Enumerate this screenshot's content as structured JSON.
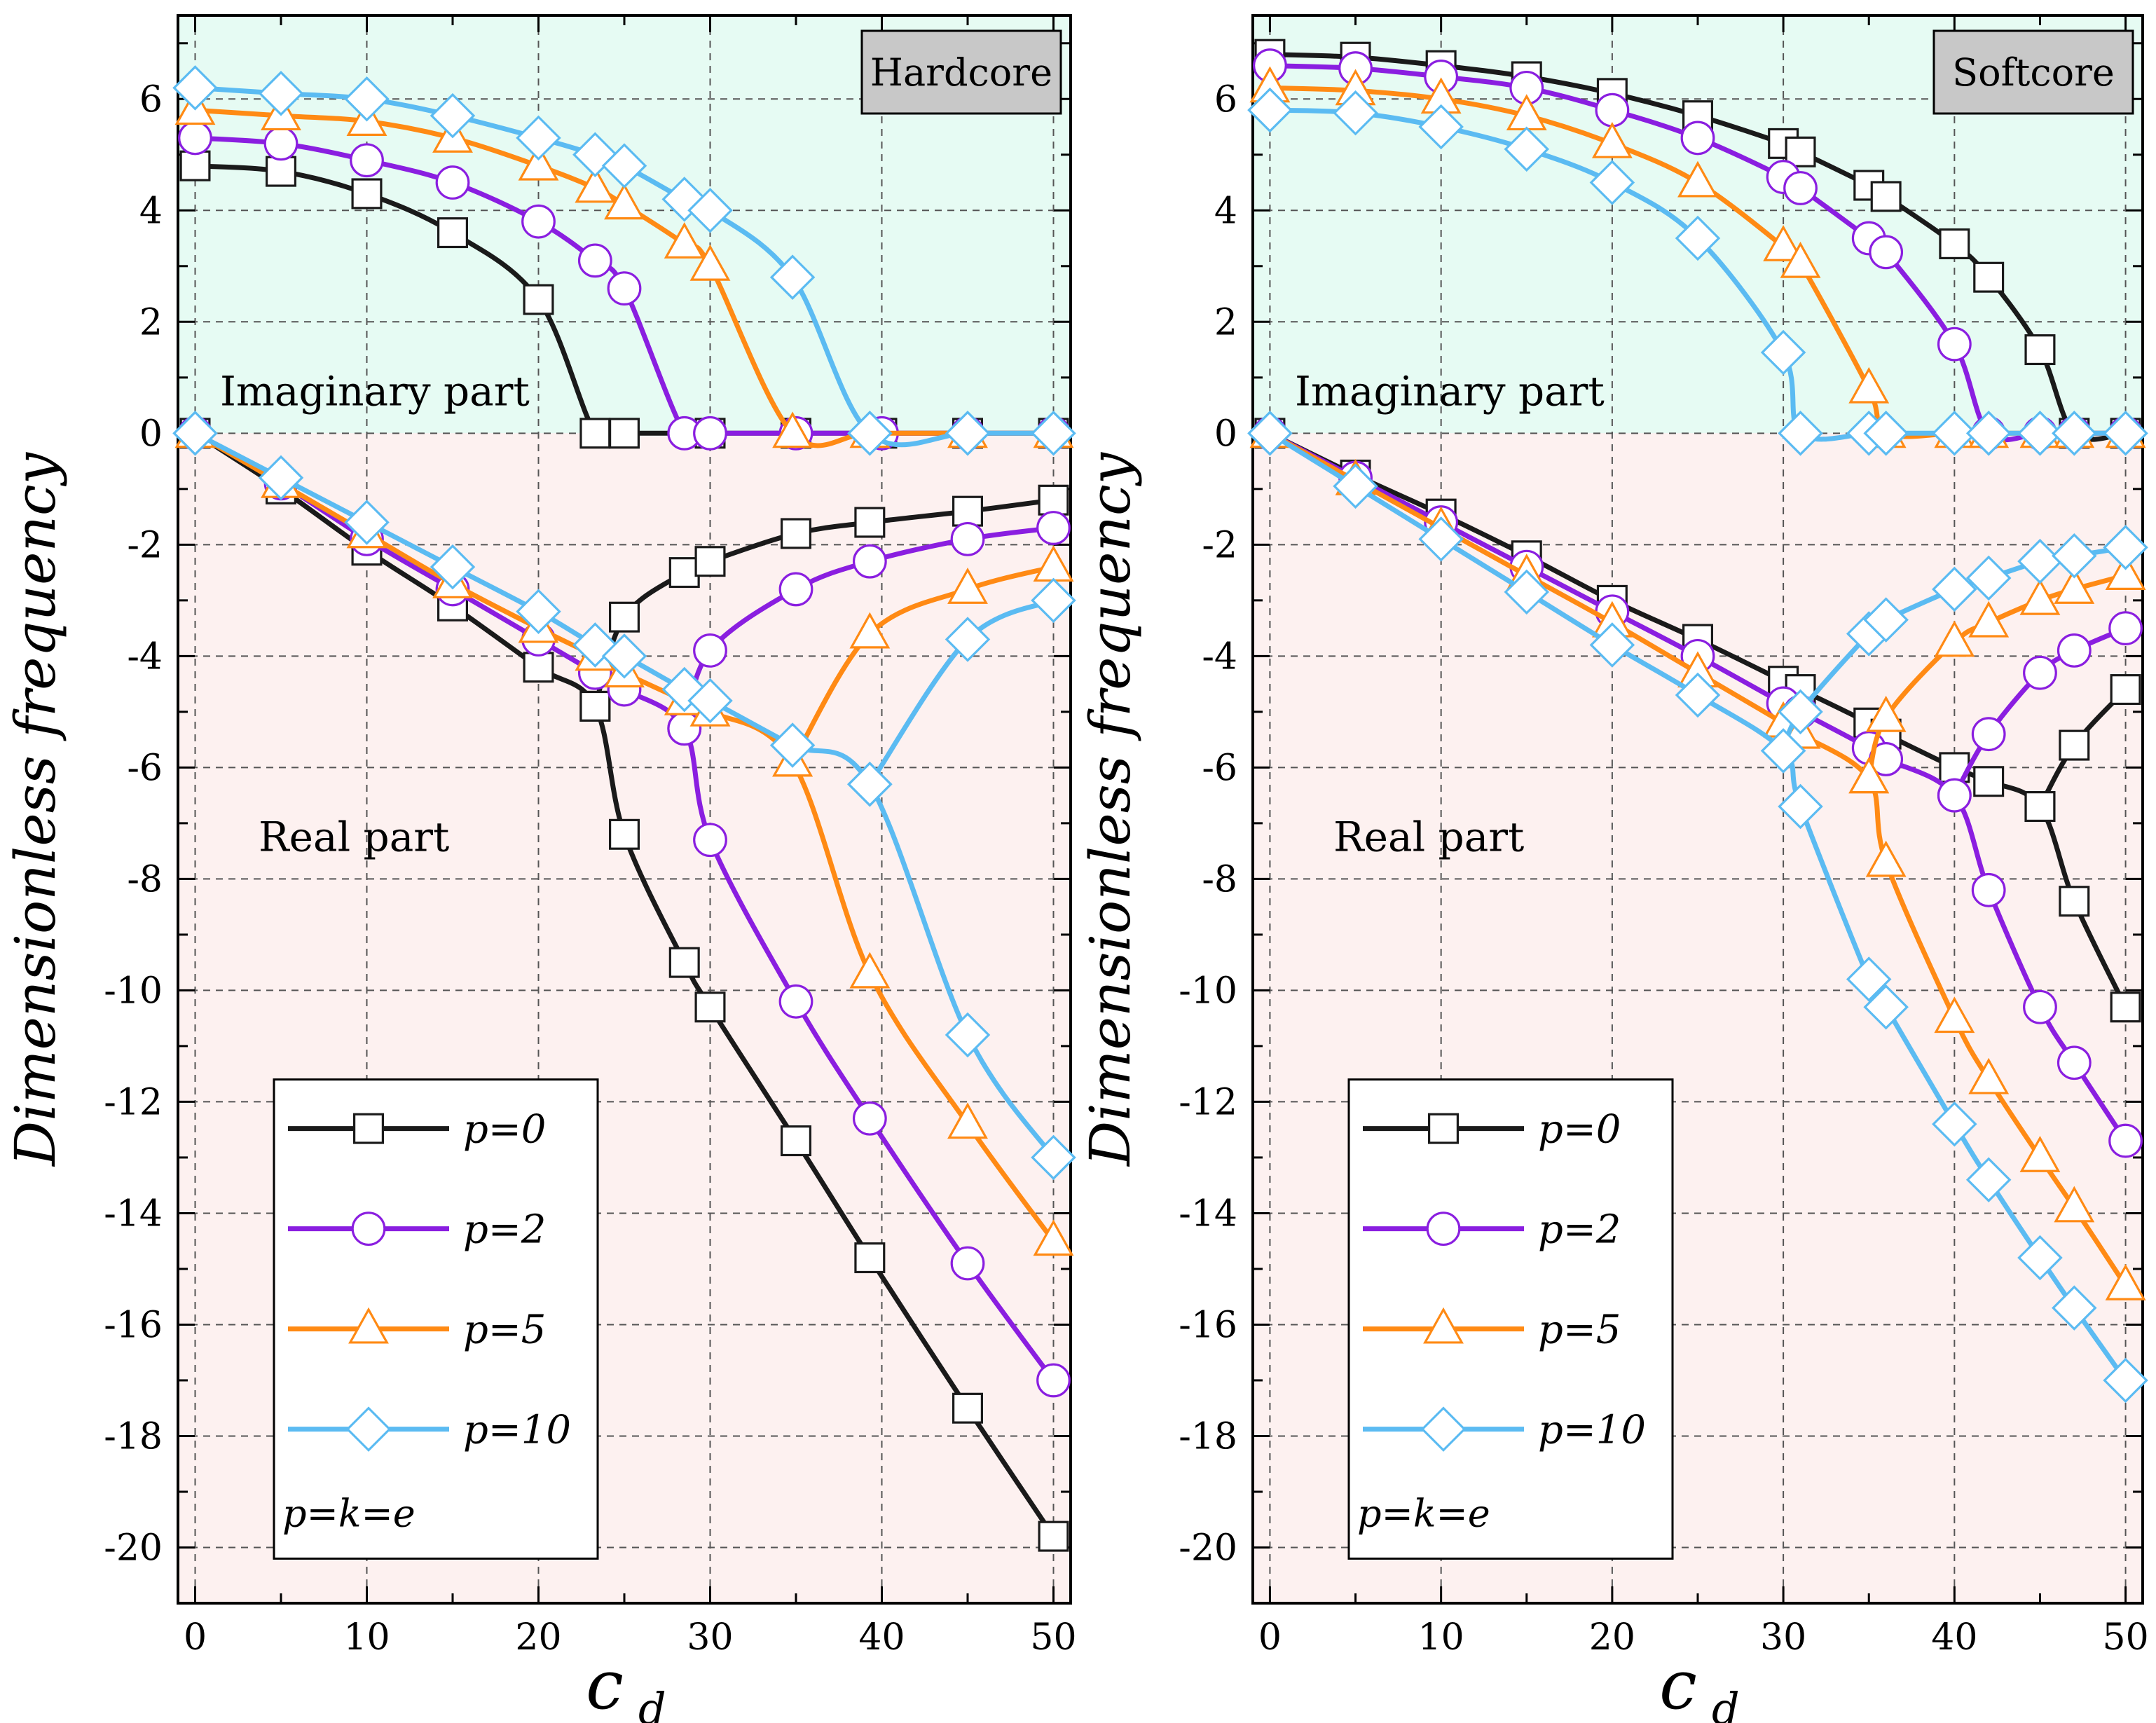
{
  "figure": {
    "ylabel": "Dimensionless frequency",
    "xlabel_main": "c",
    "xlabel_sub": "d",
    "imag_region_label": "Imaginary part",
    "real_region_label": "Real part",
    "legend_note": "p=k=e",
    "colors": {
      "imag_bg": "#e6fbf3",
      "real_bg": "#fdf1f0",
      "tag_bg": "#c8c8c8",
      "grid": "#555555"
    }
  },
  "chart_data": [
    {
      "type": "line",
      "panel_tag": "Hardcore",
      "xlim": [
        -1,
        51
      ],
      "ylim": [
        -21,
        7.5
      ],
      "xticks": [
        0,
        10,
        20,
        30,
        40,
        50
      ],
      "yticks": [
        6,
        4,
        2,
        0,
        -2,
        -4,
        -6,
        -8,
        -10,
        -12,
        -14,
        -16,
        -18,
        -20
      ],
      "grid": true,
      "legend_position": "bottom-left",
      "series": [
        {
          "name": "p=0",
          "color": "#1a1a1a",
          "marker": "square",
          "imag": {
            "x": [
              0,
              5,
              10,
              15,
              20,
              23.3,
              25,
              30,
              35,
              40,
              45,
              50
            ],
            "y": [
              4.8,
              4.7,
              4.3,
              3.6,
              2.4,
              0,
              0,
              0,
              0,
              0,
              0,
              0
            ]
          },
          "real_lower": {
            "x": [
              0,
              5,
              10,
              15,
              20,
              23.3,
              25,
              28.5,
              30,
              35,
              39.3,
              45,
              50
            ],
            "y": [
              0,
              -1.0,
              -2.1,
              -3.1,
              -4.2,
              -4.9,
              -7.2,
              -9.5,
              -10.3,
              -12.7,
              -14.8,
              -17.5,
              -19.8
            ]
          },
          "real_upper": {
            "x": [
              23.3,
              25,
              28.5,
              30,
              35,
              39.3,
              45,
              50
            ],
            "y": [
              -4.9,
              -3.3,
              -2.5,
              -2.3,
              -1.8,
              -1.6,
              -1.4,
              -1.2
            ]
          }
        },
        {
          "name": "p=2",
          "color": "#8a1ee0",
          "marker": "circle",
          "imag": {
            "x": [
              0,
              5,
              10,
              15,
              20,
              23.3,
              25,
              28.5,
              30,
              35,
              40,
              45,
              50
            ],
            "y": [
              5.3,
              5.2,
              4.9,
              4.5,
              3.8,
              3.1,
              2.6,
              0,
              0,
              0,
              0,
              0,
              0
            ]
          },
          "real_lower": {
            "x": [
              0,
              5,
              10,
              15,
              20,
              23.3,
              25,
              28.5,
              30,
              35,
              39.3,
              45,
              50
            ],
            "y": [
              0,
              -0.9,
              -1.9,
              -2.8,
              -3.7,
              -4.3,
              -4.6,
              -5.3,
              -7.3,
              -10.2,
              -12.3,
              -14.9,
              -17.0
            ]
          },
          "real_upper": {
            "x": [
              28.5,
              30,
              35,
              39.3,
              45,
              50
            ],
            "y": [
              -5.3,
              -3.9,
              -2.8,
              -2.3,
              -1.9,
              -1.7
            ]
          }
        },
        {
          "name": "p=5",
          "color": "#ff8a14",
          "marker": "triangle",
          "imag": {
            "x": [
              0,
              5,
              10,
              15,
              20,
              23.3,
              25,
              28.5,
              30,
              34.8,
              39.3,
              45,
              50
            ],
            "y": [
              5.8,
              5.7,
              5.6,
              5.3,
              4.8,
              4.4,
              4.1,
              3.4,
              3.0,
              0,
              0,
              0,
              0
            ]
          },
          "real_lower": {
            "x": [
              0,
              5,
              10,
              15,
              20,
              23.3,
              25,
              28.5,
              30,
              34.8,
              39.3,
              45,
              50
            ],
            "y": [
              0,
              -0.9,
              -1.8,
              -2.7,
              -3.5,
              -4.0,
              -4.3,
              -4.8,
              -5.0,
              -5.9,
              -9.7,
              -12.4,
              -14.5
            ]
          },
          "real_upper": {
            "x": [
              34.8,
              39.3,
              45,
              50
            ],
            "y": [
              -5.9,
              -3.6,
              -2.8,
              -2.4
            ]
          }
        },
        {
          "name": "p=10",
          "color": "#5bbbf2",
          "marker": "diamond",
          "imag": {
            "x": [
              0,
              5,
              10,
              15,
              20,
              23.3,
              25,
              28.5,
              30,
              34.8,
              39.3,
              45,
              50
            ],
            "y": [
              6.2,
              6.1,
              6.0,
              5.7,
              5.3,
              5.0,
              4.8,
              4.2,
              4.0,
              2.8,
              0,
              0,
              0
            ]
          },
          "real_lower": {
            "x": [
              0,
              5,
              10,
              15,
              20,
              23.3,
              25,
              28.5,
              30,
              34.8,
              39.3,
              45,
              50
            ],
            "y": [
              0,
              -0.8,
              -1.6,
              -2.4,
              -3.2,
              -3.8,
              -4.0,
              -4.6,
              -4.8,
              -5.6,
              -6.3,
              -10.8,
              -13.0
            ]
          },
          "real_upper": {
            "x": [
              39.3,
              45,
              50
            ],
            "y": [
              -6.3,
              -3.7,
              -3.0
            ]
          }
        }
      ]
    },
    {
      "type": "line",
      "panel_tag": "Softcore",
      "xlim": [
        -1,
        51
      ],
      "ylim": [
        -21,
        7.5
      ],
      "xticks": [
        0,
        10,
        20,
        30,
        40,
        50
      ],
      "yticks": [
        6,
        4,
        2,
        0,
        -2,
        -4,
        -6,
        -8,
        -10,
        -12,
        -14,
        -16,
        -18,
        -20
      ],
      "grid": true,
      "legend_position": "bottom-left",
      "series": [
        {
          "name": "p=0",
          "color": "#1a1a1a",
          "marker": "square",
          "imag": {
            "x": [
              0,
              5,
              10,
              15,
              20,
              25,
              30,
              31,
              35,
              36,
              40,
              42,
              45,
              47,
              50
            ],
            "y": [
              6.8,
              6.75,
              6.6,
              6.4,
              6.1,
              5.7,
              5.2,
              5.05,
              4.45,
              4.25,
              3.4,
              2.8,
              1.5,
              0,
              0
            ]
          },
          "real_lower": {
            "x": [
              0,
              5,
              10,
              15,
              20,
              25,
              30,
              31,
              35,
              36,
              40,
              42,
              45,
              47,
              50
            ],
            "y": [
              0,
              -0.75,
              -1.45,
              -2.2,
              -3.0,
              -3.7,
              -4.45,
              -4.6,
              -5.2,
              -5.4,
              -6.0,
              -6.25,
              -6.7,
              -8.4,
              -10.3
            ]
          },
          "real_upper": {
            "x": [
              45,
              47,
              50
            ],
            "y": [
              -6.7,
              -5.6,
              -4.6
            ]
          }
        },
        {
          "name": "p=2",
          "color": "#8a1ee0",
          "marker": "circle",
          "imag": {
            "x": [
              0,
              5,
              10,
              15,
              20,
              25,
              30,
              31,
              35,
              36,
              40,
              42,
              45,
              47,
              50
            ],
            "y": [
              6.6,
              6.55,
              6.4,
              6.2,
              5.8,
              5.3,
              4.6,
              4.4,
              3.5,
              3.25,
              1.6,
              0,
              0,
              0,
              0
            ]
          },
          "real_lower": {
            "x": [
              0,
              5,
              10,
              15,
              20,
              25,
              30,
              31,
              35,
              36,
              40,
              42,
              45,
              47,
              50
            ],
            "y": [
              0,
              -0.8,
              -1.6,
              -2.4,
              -3.2,
              -4.0,
              -4.85,
              -5.0,
              -5.65,
              -5.85,
              -6.5,
              -8.2,
              -10.3,
              -11.3,
              -12.7
            ]
          },
          "real_upper": {
            "x": [
              40,
              42,
              45,
              47,
              50
            ],
            "y": [
              -6.5,
              -5.4,
              -4.3,
              -3.9,
              -3.5
            ]
          }
        },
        {
          "name": "p=5",
          "color": "#ff8a14",
          "marker": "triangle",
          "imag": {
            "x": [
              0,
              5,
              10,
              15,
              20,
              25,
              30,
              31,
              35,
              36,
              40,
              42,
              45,
              47,
              50
            ],
            "y": [
              6.2,
              6.15,
              6.0,
              5.7,
              5.2,
              4.5,
              3.35,
              3.05,
              0.8,
              0,
              0,
              0,
              0,
              0,
              0
            ]
          },
          "real_lower": {
            "x": [
              0,
              5,
              10,
              15,
              20,
              25,
              30,
              31,
              35,
              36,
              40,
              42,
              45,
              47,
              50
            ],
            "y": [
              0,
              -0.85,
              -1.7,
              -2.55,
              -3.4,
              -4.3,
              -5.2,
              -5.4,
              -6.2,
              -7.7,
              -10.5,
              -11.6,
              -13.0,
              -13.9,
              -15.3
            ]
          },
          "real_upper": {
            "x": [
              35,
              36,
              40,
              42,
              45,
              47,
              50
            ],
            "y": [
              -6.2,
              -5.1,
              -3.75,
              -3.4,
              -3.0,
              -2.8,
              -2.55
            ]
          }
        },
        {
          "name": "p=10",
          "color": "#5bbbf2",
          "marker": "diamond",
          "imag": {
            "x": [
              0,
              5,
              10,
              15,
              20,
              25,
              30,
              31,
              35,
              36,
              40,
              42,
              45,
              47,
              50
            ],
            "y": [
              5.8,
              5.75,
              5.5,
              5.1,
              4.5,
              3.5,
              1.45,
              0,
              0,
              0,
              0,
              0,
              0,
              0,
              0
            ]
          },
          "real_lower": {
            "x": [
              0,
              5,
              10,
              15,
              20,
              25,
              30,
              31,
              35,
              36,
              40,
              42,
              45,
              47,
              50
            ],
            "y": [
              0,
              -0.95,
              -1.9,
              -2.85,
              -3.8,
              -4.7,
              -5.7,
              -6.7,
              -9.8,
              -10.3,
              -12.4,
              -13.4,
              -14.8,
              -15.7,
              -17.0
            ]
          },
          "real_upper": {
            "x": [
              30,
              31,
              35,
              36,
              40,
              42,
              45,
              47,
              50
            ],
            "y": [
              -5.7,
              -5.0,
              -3.6,
              -3.35,
              -2.8,
              -2.6,
              -2.3,
              -2.2,
              -2.05
            ]
          }
        }
      ]
    }
  ]
}
